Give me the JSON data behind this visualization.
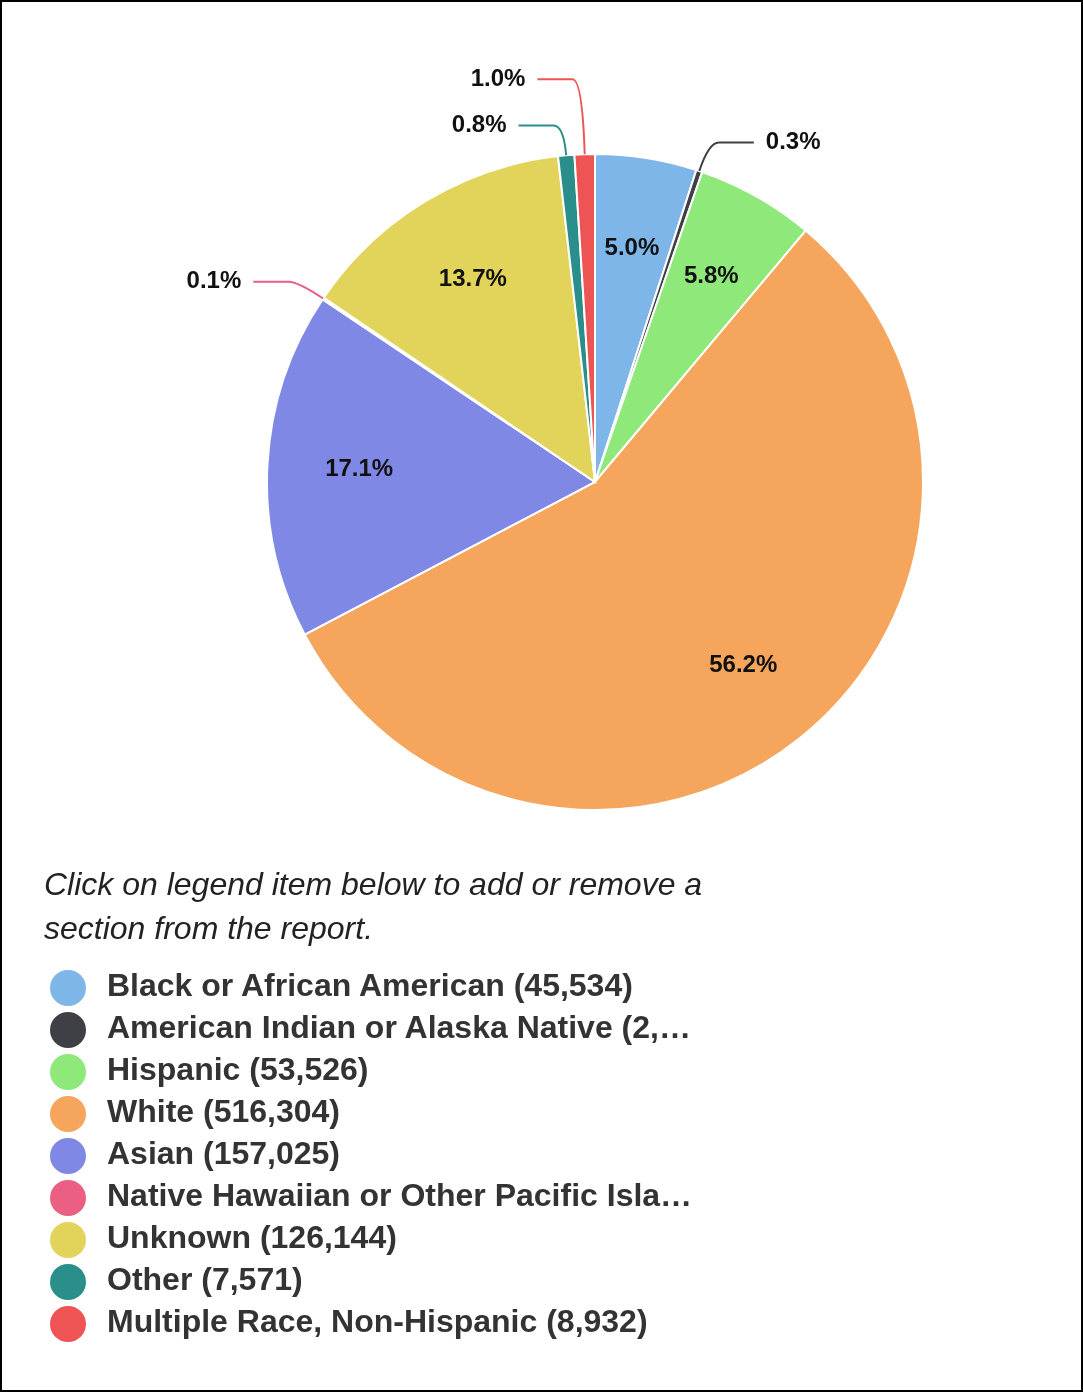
{
  "chart_data": {
    "type": "pie",
    "categories": [
      "Black or African American (45,534)",
      "American Indian or Alaska Native (2,…",
      "Hispanic (53,526)",
      "White (516,304)",
      "Asian (157,025)",
      "Native Hawaiian or Other Pacific Isla…",
      "Unknown (126,144)",
      "Other (7,571)",
      "Multiple Race, Non-Hispanic (8,932)"
    ],
    "values": [
      5.0,
      0.3,
      5.8,
      56.2,
      17.1,
      0.1,
      13.7,
      0.8,
      1.0
    ],
    "colors": [
      "#7eb6ea",
      "#3f3f46",
      "#8ee87a",
      "#f5a55c",
      "#8088e6",
      "#ea5f82",
      "#e2d45a",
      "#2a8f8a",
      "#ee5454"
    ],
    "value_labels": [
      "5.0%",
      "0.3%",
      "5.8%",
      "56.2%",
      "17.1%",
      "0.1%",
      "13.7%",
      "0.8%",
      "1.0%"
    ],
    "legend": "bottom",
    "annotations": [
      "Click on legend item below to add or remove a section from the report."
    ]
  }
}
